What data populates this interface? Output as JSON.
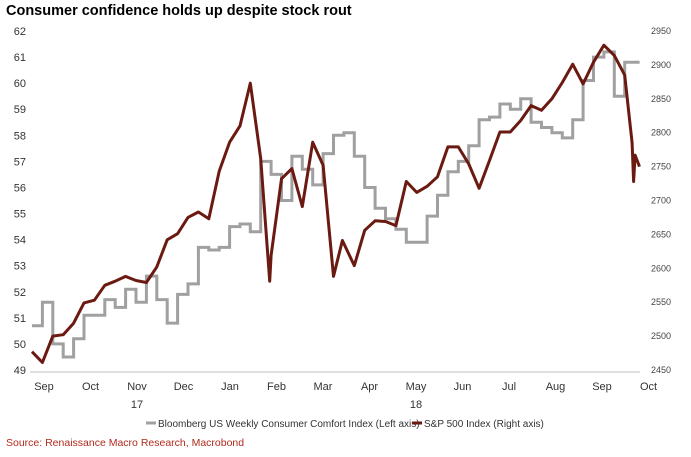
{
  "chart_data": {
    "type": "line",
    "title": "Consumer confidence holds up despite stock rout",
    "source": "Source: Renaissance Macro Research, Macrobond",
    "x_month_labels": [
      "Sep",
      "Oct",
      "Nov",
      "Dec",
      "Jan",
      "Feb",
      "Mar",
      "Apr",
      "May",
      "Jun",
      "Jul",
      "Aug",
      "Sep",
      "Oct"
    ],
    "year_labels": [
      {
        "label": "17",
        "month": "Nov"
      },
      {
        "label": "18",
        "month": "May"
      }
    ],
    "x_range": [
      "2017-09-01",
      "2018-10-16"
    ],
    "left_axis": {
      "ylim": [
        49,
        62
      ],
      "ticks": [
        49,
        50,
        51,
        52,
        53,
        54,
        55,
        56,
        57,
        58,
        59,
        60,
        61,
        62
      ]
    },
    "right_axis": {
      "ylim": [
        2450,
        2950
      ],
      "ticks": [
        2450,
        2500,
        2550,
        2600,
        2650,
        2700,
        2750,
        2800,
        2850,
        2900,
        2950
      ]
    },
    "grid": false,
    "legend_position": "bottom",
    "series": [
      {
        "name": "Bloomberg US Weekly Consumer Comfort Index (Left axis)",
        "axis": "left",
        "color": "#a0a0a0",
        "x": [
          "2017-09-01",
          "2017-09-08",
          "2017-09-15",
          "2017-09-22",
          "2017-09-29",
          "2017-10-06",
          "2017-10-13",
          "2017-10-20",
          "2017-10-27",
          "2017-11-03",
          "2017-11-10",
          "2017-11-17",
          "2017-11-24",
          "2017-12-01",
          "2017-12-08",
          "2017-12-15",
          "2017-12-22",
          "2017-12-29",
          "2018-01-05",
          "2018-01-12",
          "2018-01-19",
          "2018-01-26",
          "2018-02-02",
          "2018-02-09",
          "2018-02-16",
          "2018-02-23",
          "2018-03-02",
          "2018-03-09",
          "2018-03-16",
          "2018-03-23",
          "2018-03-30",
          "2018-04-06",
          "2018-04-13",
          "2018-04-20",
          "2018-04-27",
          "2018-05-04",
          "2018-05-11",
          "2018-05-18",
          "2018-05-25",
          "2018-06-01",
          "2018-06-08",
          "2018-06-15",
          "2018-06-22",
          "2018-06-29",
          "2018-07-06",
          "2018-07-13",
          "2018-07-20",
          "2018-07-27",
          "2018-08-03",
          "2018-08-10",
          "2018-08-17",
          "2018-08-24",
          "2018-08-31",
          "2018-09-07",
          "2018-09-14",
          "2018-09-21",
          "2018-09-28",
          "2018-10-05",
          "2018-10-11"
        ],
        "values": [
          50.7,
          51.6,
          50.0,
          49.5,
          50.2,
          51.1,
          51.1,
          51.7,
          51.4,
          52.1,
          51.6,
          52.6,
          51.7,
          50.8,
          51.9,
          52.3,
          53.7,
          53.6,
          53.7,
          54.5,
          54.6,
          54.3,
          57.0,
          56.5,
          55.5,
          57.2,
          56.7,
          56.1,
          57.3,
          58.0,
          58.1,
          57.2,
          56.0,
          55.2,
          54.8,
          54.4,
          53.9,
          53.9,
          54.9,
          55.7,
          56.6,
          57.0,
          57.6,
          58.6,
          58.7,
          59.2,
          59.0,
          59.4,
          58.5,
          58.3,
          58.1,
          57.9,
          58.6,
          60.1,
          61.0,
          61.2,
          59.5,
          60.8,
          60.8
        ]
      },
      {
        "name": "S&P 500 Index (Right axis)",
        "axis": "right",
        "color": "#6b1a12",
        "x": [
          "2017-09-01",
          "2017-09-08",
          "2017-09-15",
          "2017-09-22",
          "2017-09-29",
          "2017-10-06",
          "2017-10-13",
          "2017-10-20",
          "2017-10-27",
          "2017-11-03",
          "2017-11-10",
          "2017-11-17",
          "2017-11-24",
          "2017-12-01",
          "2017-12-08",
          "2017-12-15",
          "2017-12-22",
          "2017-12-29",
          "2018-01-05",
          "2018-01-12",
          "2018-01-19",
          "2018-01-26",
          "2018-02-02",
          "2018-02-08",
          "2018-02-09",
          "2018-02-16",
          "2018-02-23",
          "2018-03-02",
          "2018-03-09",
          "2018-03-16",
          "2018-03-23",
          "2018-03-29",
          "2018-04-06",
          "2018-04-13",
          "2018-04-20",
          "2018-04-27",
          "2018-05-04",
          "2018-05-11",
          "2018-05-18",
          "2018-05-25",
          "2018-06-01",
          "2018-06-08",
          "2018-06-15",
          "2018-06-22",
          "2018-06-29",
          "2018-07-06",
          "2018-07-13",
          "2018-07-20",
          "2018-07-27",
          "2018-08-03",
          "2018-08-10",
          "2018-08-17",
          "2018-08-24",
          "2018-08-31",
          "2018-09-07",
          "2018-09-14",
          "2018-09-21",
          "2018-09-28",
          "2018-10-05",
          "2018-10-10",
          "2018-10-11",
          "2018-10-12",
          "2018-10-15"
        ],
        "values": [
          2477,
          2461,
          2500,
          2502,
          2519,
          2549,
          2553,
          2575,
          2581,
          2588,
          2582,
          2579,
          2602,
          2642,
          2651,
          2675,
          2683,
          2673,
          2743,
          2786,
          2810,
          2873,
          2762,
          2581,
          2619,
          2732,
          2747,
          2691,
          2786,
          2752,
          2588,
          2641,
          2604,
          2656,
          2670,
          2669,
          2663,
          2728,
          2712,
          2721,
          2735,
          2779,
          2779,
          2754,
          2718,
          2759,
          2801,
          2801,
          2818,
          2840,
          2833,
          2850,
          2874,
          2901,
          2872,
          2904,
          2929,
          2914,
          2885,
          2785,
          2728,
          2767,
          2750
        ]
      }
    ]
  }
}
